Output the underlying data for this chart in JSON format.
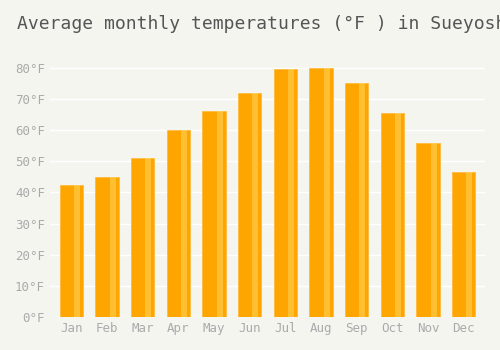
{
  "title": "Average monthly temperatures (°F ) in Sueyoshi",
  "months": [
    "Jan",
    "Feb",
    "Mar",
    "Apr",
    "May",
    "Jun",
    "Jul",
    "Aug",
    "Sep",
    "Oct",
    "Nov",
    "Dec"
  ],
  "values": [
    42.5,
    45.0,
    51.0,
    60.0,
    66.0,
    72.0,
    79.5,
    80.0,
    75.0,
    65.5,
    56.0,
    46.5
  ],
  "bar_color_main": "#FFA500",
  "bar_color_edge": "#FFB733",
  "bar_color_gradient_top": "#FFD966",
  "ylim": [
    0,
    88
  ],
  "yticks": [
    0,
    10,
    20,
    30,
    40,
    50,
    60,
    70,
    80
  ],
  "background_color": "#F5F5F0",
  "grid_color": "#FFFFFF",
  "title_fontsize": 13,
  "tick_fontsize": 9,
  "tick_color": "#AAAAAA",
  "font_family": "monospace"
}
